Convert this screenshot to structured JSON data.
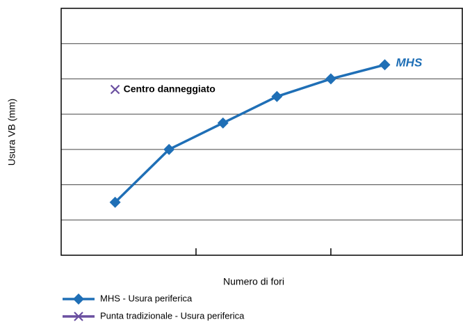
{
  "chart_data": {
    "type": "line",
    "x": [
      1,
      2,
      3,
      4,
      5,
      6
    ],
    "series": [
      {
        "name": "MHS - Usura periferica",
        "color": "#1f6fb6",
        "marker": "diamond",
        "values": [
          1.5,
          3.0,
          3.75,
          4.5,
          5.0,
          5.4
        ]
      },
      {
        "name": "Punta tradizionale - Usura periferica",
        "color": "#6a4fa0",
        "marker": "x",
        "values": [
          4.7,
          null,
          null,
          null,
          null,
          null
        ]
      }
    ],
    "annotations": [
      "Centro danneggiato",
      "MHS"
    ],
    "xlabel": "Numero di fori",
    "ylabel": "Usura VB (mm)",
    "xlim": [
      0,
      7.45
    ],
    "xticks": [
      2.5,
      5
    ],
    "ylim": [
      0,
      7
    ],
    "yticks": [
      0,
      1,
      2,
      3,
      4,
      5,
      6,
      7
    ],
    "grid": true
  }
}
